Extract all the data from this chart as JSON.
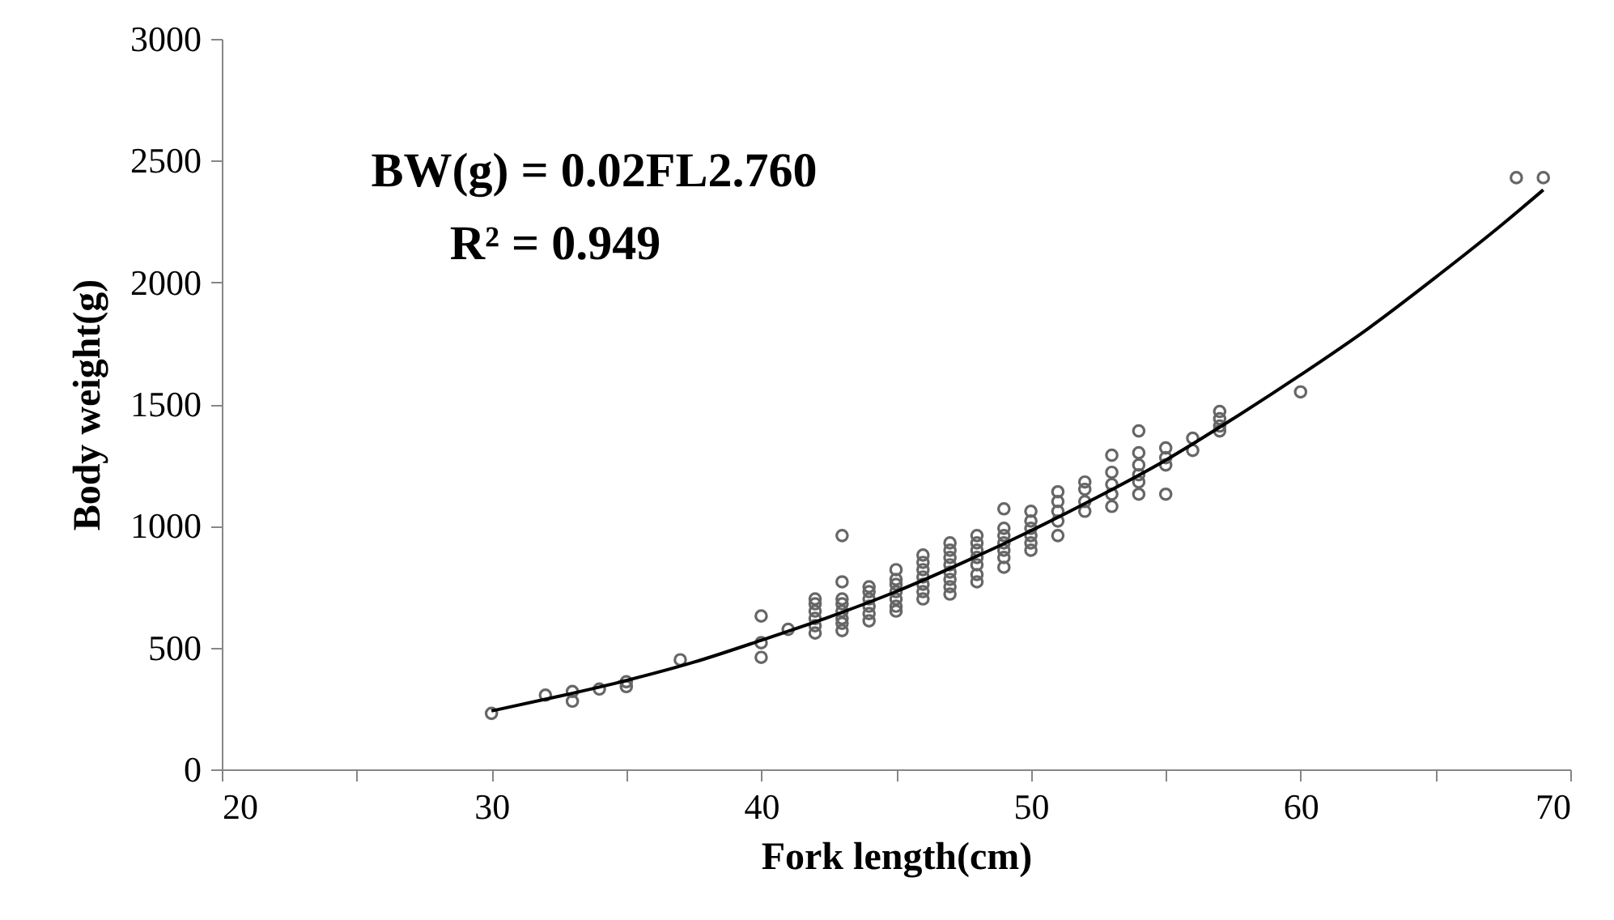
{
  "chart_data": {
    "type": "scatter",
    "xlabel": "Fork length(cm)",
    "ylabel": "Body weight(g)",
    "annotations": [
      "BW(g) = 0.02FL2.760",
      "R² = 0.949"
    ],
    "xlim": [
      20,
      70
    ],
    "xticks": [
      20,
      {
        "value": 25,
        "label": null
      },
      30,
      {
        "value": 35,
        "label": null
      },
      40,
      {
        "value": 45,
        "label": null
      },
      50,
      {
        "value": 55,
        "label": null
      },
      60,
      {
        "value": 65,
        "label": null
      },
      70
    ],
    "ylim": [
      0,
      3000
    ],
    "yticks": [
      0,
      500,
      1000,
      1500,
      2000,
      2500,
      3000
    ],
    "marker": "circle",
    "series": [
      {
        "color": "#666666",
        "x": [
          30,
          32,
          33,
          33,
          34,
          35,
          35,
          37,
          40,
          40,
          40,
          41,
          42,
          42,
          42,
          42,
          42,
          42,
          43,
          43,
          43,
          43,
          43,
          43,
          43,
          43,
          44,
          44,
          44,
          44,
          44,
          44,
          45,
          45,
          45,
          45,
          45,
          45,
          45,
          46,
          46,
          46,
          46,
          46,
          46,
          46,
          47,
          47,
          47,
          47,
          47,
          47,
          47,
          47,
          48,
          48,
          48,
          48,
          48,
          48,
          48,
          49,
          49,
          49,
          49,
          49,
          49,
          49,
          50,
          50,
          50,
          50,
          50,
          50,
          51,
          51,
          51,
          51,
          51,
          52,
          52,
          52,
          52,
          53,
          53,
          53,
          53,
          53,
          54,
          54,
          54,
          54,
          54,
          54,
          55,
          55,
          55,
          55,
          56,
          56,
          57,
          57,
          57,
          57,
          60,
          68,
          69
        ],
        "values": [
          230,
          305,
          320,
          280,
          330,
          340,
          360,
          450,
          630,
          520,
          460,
          575,
          560,
          590,
          620,
          650,
          680,
          700,
          960,
          770,
          700,
          680,
          650,
          620,
          600,
          570,
          610,
          640,
          670,
          700,
          730,
          750,
          820,
          780,
          760,
          730,
          700,
          670,
          650,
          880,
          850,
          820,
          790,
          760,
          730,
          700,
          930,
          900,
          870,
          840,
          810,
          780,
          750,
          720,
          960,
          930,
          900,
          870,
          840,
          800,
          770,
          1070,
          990,
          960,
          930,
          900,
          870,
          830,
          1060,
          1020,
          990,
          960,
          930,
          900,
          1140,
          1100,
          1060,
          1020,
          960,
          1180,
          1150,
          1100,
          1060,
          1290,
          1220,
          1170,
          1130,
          1080,
          1390,
          1300,
          1250,
          1210,
          1180,
          1130,
          1320,
          1280,
          1250,
          1130,
          1360,
          1310,
          1470,
          1440,
          1410,
          1390,
          1550,
          2430,
          2430
        ]
      },
      {
        "type": "line",
        "color": "#000000",
        "line_style": "solid",
        "marker": "none",
        "x": [
          30,
          32.5,
          35,
          37.5,
          40,
          42.5,
          45,
          47.5,
          50,
          52.5,
          55,
          57.5,
          60,
          62.5,
          65,
          67.5,
          69
        ],
        "values": [
          240,
          300,
          365,
          440,
          530,
          625,
          730,
          850,
          980,
          1120,
          1270,
          1440,
          1620,
          1810,
          2020,
          2240,
          2380
        ]
      }
    ]
  }
}
